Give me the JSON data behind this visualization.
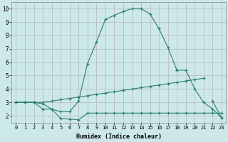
{
  "xlabel": "Humidex (Indice chaleur)",
  "x_values": [
    0,
    1,
    2,
    3,
    4,
    5,
    6,
    7,
    8,
    9,
    10,
    11,
    12,
    13,
    14,
    15,
    16,
    17,
    18,
    19,
    20,
    21,
    22,
    23
  ],
  "line_upper": [
    3.0,
    3.0,
    3.0,
    2.9,
    2.5,
    2.3,
    2.3,
    3.1,
    5.9,
    7.5,
    9.2,
    9.5,
    9.8,
    10.0,
    10.0,
    9.6,
    8.5,
    7.1,
    5.4,
    null,
    null,
    null,
    null,
    null
  ],
  "line_mid": [
    3.0,
    3.0,
    3.0,
    3.0,
    3.1,
    3.2,
    3.3,
    3.4,
    3.5,
    3.6,
    3.7,
    3.8,
    3.9,
    4.0,
    4.1,
    4.2,
    4.3,
    4.4,
    4.5,
    4.6,
    4.7,
    4.8,
    null,
    null
  ],
  "line_low": [
    3.0,
    3.0,
    3.0,
    2.5,
    2.5,
    1.8,
    1.75,
    1.7,
    2.2,
    2.2,
    2.2,
    2.2,
    2.2,
    2.2,
    2.2,
    2.2,
    2.2,
    2.2,
    2.2,
    2.2,
    2.2,
    2.2,
    2.2,
    2.2
  ],
  "line_right_upper": [
    null,
    null,
    null,
    null,
    null,
    null,
    null,
    null,
    null,
    null,
    null,
    null,
    null,
    null,
    null,
    null,
    null,
    null,
    5.4,
    5.4,
    4.0,
    3.0,
    2.5,
    1.85
  ],
  "line_right_mid": [
    null,
    null,
    null,
    null,
    null,
    null,
    null,
    null,
    null,
    null,
    null,
    null,
    null,
    null,
    null,
    null,
    null,
    null,
    null,
    null,
    null,
    null,
    3.1,
    1.85
  ],
  "line_color": "#2d7d72",
  "bg_color": "#cce8e8",
  "grid_color": "#b8b8b8",
  "ylim": [
    1.5,
    10.5
  ],
  "xlim": [
    -0.5,
    23.5
  ],
  "yticks": [
    2,
    3,
    4,
    5,
    6,
    7,
    8,
    9,
    10
  ],
  "xticks": [
    0,
    1,
    2,
    3,
    4,
    5,
    6,
    7,
    8,
    9,
    10,
    11,
    12,
    13,
    14,
    15,
    16,
    17,
    18,
    19,
    20,
    21,
    22,
    23
  ]
}
